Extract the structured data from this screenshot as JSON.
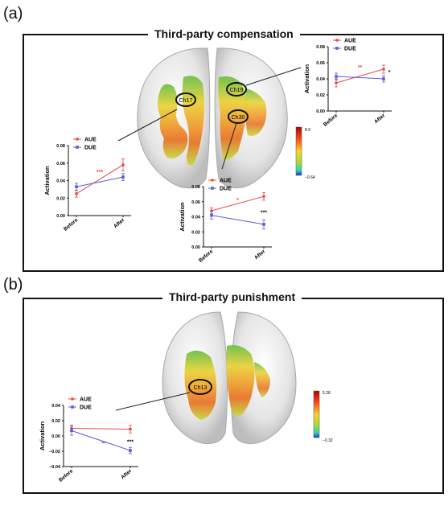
{
  "figure": {
    "panel_a": {
      "label": "(a)",
      "title": "Third-party compensation",
      "channels": [
        "Ch17",
        "Ch19",
        "Ch30"
      ],
      "colorbar": {
        "max": "8.9",
        "min": "−0.64"
      }
    },
    "panel_b": {
      "label": "(b)",
      "title": "Third-party punishment",
      "channels": [
        "Ch13"
      ],
      "colorbar": {
        "max": "5.28",
        "min": "−0.32"
      }
    }
  },
  "colors": {
    "AUE": "#e8474a",
    "DUE": "#5a5ae0"
  },
  "chart_data": [
    {
      "id": "ch19",
      "type": "line",
      "categories": [
        "Before",
        "After"
      ],
      "ylabel": "Activation",
      "ylim": [
        0,
        0.08
      ],
      "yticks": [
        "0.00",
        "0.02",
        "0.04",
        "0.06",
        "0.08"
      ],
      "series": [
        {
          "name": "AUE",
          "values": [
            0.035,
            0.052
          ],
          "err": [
            0.005,
            0.005
          ]
        },
        {
          "name": "DUE",
          "values": [
            0.043,
            0.04
          ],
          "err": [
            0.004,
            0.004
          ]
        }
      ],
      "annotations": [
        {
          "text": "**",
          "color": "AUE",
          "x": 0.5,
          "y": 0.052
        },
        {
          "text": "*",
          "color": "black",
          "x": 1.12,
          "y": 0.046
        }
      ]
    },
    {
      "id": "ch17",
      "type": "line",
      "categories": [
        "Before",
        "After"
      ],
      "ylabel": "Activation",
      "ylim": [
        0,
        0.08
      ],
      "yticks": [
        "0.00",
        "0.02",
        "0.04",
        "0.06",
        "0.08"
      ],
      "series": [
        {
          "name": "AUE",
          "values": [
            0.025,
            0.058
          ],
          "err": [
            0.004,
            0.007
          ]
        },
        {
          "name": "DUE",
          "values": [
            0.033,
            0.044
          ],
          "err": [
            0.004,
            0.004
          ]
        }
      ],
      "annotations": [
        {
          "text": "***",
          "color": "AUE",
          "x": 0.5,
          "y": 0.048
        }
      ]
    },
    {
      "id": "ch30",
      "type": "line",
      "categories": [
        "Before",
        "After"
      ],
      "ylabel": "Activation",
      "ylim": [
        0,
        0.08
      ],
      "yticks": [
        "0.00",
        "0.02",
        "0.04",
        "0.06",
        "0.08"
      ],
      "series": [
        {
          "name": "AUE",
          "values": [
            0.048,
            0.067
          ],
          "err": [
            0.004,
            0.005
          ]
        },
        {
          "name": "DUE",
          "values": [
            0.042,
            0.03
          ],
          "err": [
            0.005,
            0.006
          ]
        }
      ],
      "annotations": [
        {
          "text": "*",
          "color": "AUE",
          "x": 0.5,
          "y": 0.06
        },
        {
          "text": "***",
          "color": "black",
          "x": 1.0,
          "y": 0.043
        }
      ]
    },
    {
      "id": "ch13",
      "type": "line",
      "categories": [
        "Before",
        "After"
      ],
      "ylabel": "Activation",
      "ylim": [
        -0.04,
        0.04
      ],
      "yticks": [
        "−0.04",
        "−0.02",
        "0.00",
        "0.02",
        "0.04"
      ],
      "series": [
        {
          "name": "AUE",
          "values": [
            0.01,
            0.009
          ],
          "err": [
            0.004,
            0.005
          ]
        },
        {
          "name": "DUE",
          "values": [
            0.007,
            -0.019
          ],
          "err": [
            0.006,
            0.004
          ]
        }
      ],
      "annotations": [
        {
          "text": "**",
          "color": "DUE",
          "x": 0.55,
          "y": -0.012
        },
        {
          "text": "***",
          "color": "black",
          "x": 1.0,
          "y": -0.01
        }
      ]
    }
  ]
}
